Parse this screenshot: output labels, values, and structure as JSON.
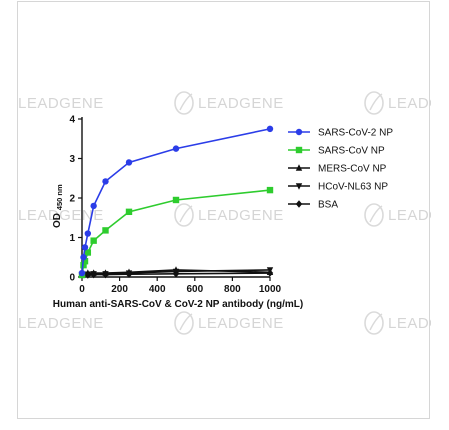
{
  "chart_data": {
    "type": "line",
    "xlabel": "Human anti-SARS-CoV & CoV-2 NP antibody (ng/mL)",
    "ylabel_main": "OD",
    "ylabel_sub": "450 nm",
    "xlim": [
      0,
      1000
    ],
    "ylim": [
      0,
      4
    ],
    "xticks": [
      0,
      200,
      400,
      600,
      800,
      1000
    ],
    "yticks": [
      0,
      1,
      2,
      3,
      4
    ],
    "legend_position": "right",
    "grid": false,
    "series": [
      {
        "name": "SARS-CoV-2 NP",
        "color": "#2b3de8",
        "marker": "circle",
        "points": [
          [
            0,
            0.1
          ],
          [
            8,
            0.5
          ],
          [
            16,
            0.75
          ],
          [
            31,
            1.1
          ],
          [
            62,
            1.8
          ],
          [
            125,
            2.42
          ],
          [
            250,
            2.9
          ],
          [
            500,
            3.25
          ],
          [
            1000,
            3.75
          ]
        ]
      },
      {
        "name": "SARS-CoV NP",
        "color": "#2ecc2e",
        "marker": "square",
        "points": [
          [
            0,
            0.05
          ],
          [
            8,
            0.3
          ],
          [
            16,
            0.4
          ],
          [
            31,
            0.62
          ],
          [
            62,
            0.92
          ],
          [
            125,
            1.18
          ],
          [
            250,
            1.65
          ],
          [
            500,
            1.95
          ],
          [
            1000,
            2.2
          ]
        ]
      },
      {
        "name": "MERS-CoV NP",
        "color": "#111111",
        "marker": "triangle-up",
        "points": [
          [
            0,
            0.08
          ],
          [
            31,
            0.1
          ],
          [
            62,
            0.1
          ],
          [
            125,
            0.1
          ],
          [
            250,
            0.12
          ],
          [
            500,
            0.18
          ],
          [
            1000,
            0.12
          ]
        ]
      },
      {
        "name": "HCoV-NL63 NP",
        "color": "#111111",
        "marker": "triangle-down",
        "points": [
          [
            0,
            0.06
          ],
          [
            31,
            0.07
          ],
          [
            62,
            0.08
          ],
          [
            125,
            0.08
          ],
          [
            250,
            0.1
          ],
          [
            500,
            0.14
          ],
          [
            1000,
            0.18
          ]
        ]
      },
      {
        "name": "BSA",
        "color": "#111111",
        "marker": "diamond",
        "points": [
          [
            0,
            0.05
          ],
          [
            31,
            0.05
          ],
          [
            62,
            0.06
          ],
          [
            125,
            0.06
          ],
          [
            250,
            0.07
          ],
          [
            500,
            0.08
          ],
          [
            1000,
            0.1
          ]
        ]
      }
    ]
  },
  "watermark": {
    "text": "LEADGENE"
  }
}
